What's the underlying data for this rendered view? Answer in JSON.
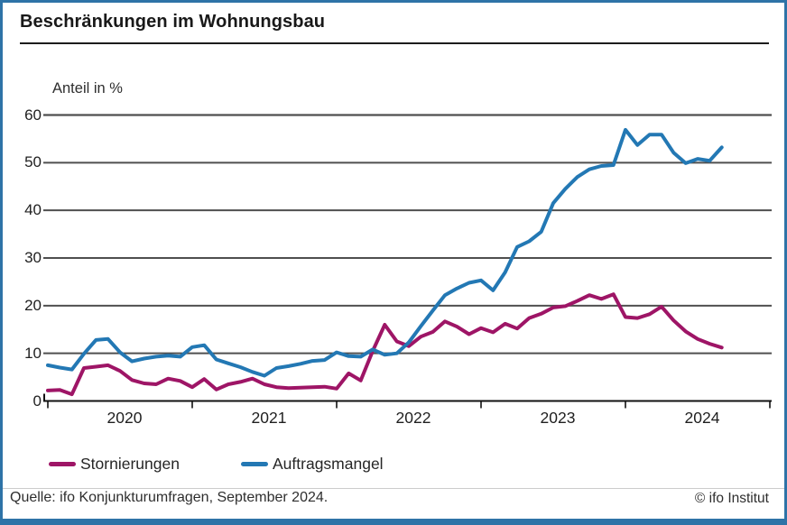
{
  "header": {
    "title": "Beschränkungen im Wohnungsbau"
  },
  "chart_data": {
    "type": "line",
    "title": "Beschränkungen im Wohnungsbau",
    "ylabel": "Anteil in %",
    "ylim": [
      0,
      60
    ],
    "y_ticks": [
      0,
      10,
      20,
      30,
      40,
      50,
      60
    ],
    "x_ticks": [
      "2020",
      "2021",
      "2022",
      "2023",
      "2024"
    ],
    "x_unit": "month",
    "x_start": "2020-01",
    "x_end": "2024-09",
    "grid": true,
    "legend_position": "bottom",
    "series": [
      {
        "name": "Stornierungen",
        "color": "#9e1566",
        "values": [
          2.2,
          2.3,
          1.4,
          6.9,
          7.2,
          7.5,
          6.3,
          4.4,
          3.7,
          3.5,
          4.7,
          4.2,
          2.9,
          4.6,
          2.4,
          3.5,
          4.0,
          4.7,
          3.5,
          2.9,
          2.7,
          2.8,
          2.9,
          3.0,
          2.6,
          5.8,
          4.3,
          10.5,
          16.0,
          12.5,
          11.5,
          13.5,
          14.5,
          16.7,
          15.6,
          14.0,
          15.3,
          14.4,
          16.2,
          15.2,
          17.4,
          18.3,
          19.6,
          19.9,
          21.0,
          22.2,
          21.4,
          22.4,
          17.6,
          17.4,
          18.2,
          19.8,
          16.9,
          14.6,
          13.0,
          12.0,
          11.2
        ]
      },
      {
        "name": "Auftragsmangel",
        "color": "#2378b4",
        "values": [
          7.5,
          7.0,
          6.6,
          9.9,
          12.8,
          13.0,
          10.2,
          8.3,
          8.9,
          9.3,
          9.5,
          9.3,
          11.3,
          11.7,
          8.7,
          7.9,
          7.1,
          6.1,
          5.3,
          6.9,
          7.3,
          7.8,
          8.4,
          8.6,
          10.2,
          9.4,
          9.3,
          10.8,
          9.7,
          10.0,
          12.3,
          15.7,
          19.0,
          22.2,
          23.6,
          24.8,
          25.3,
          23.2,
          27.0,
          32.3,
          33.5,
          35.5,
          41.5,
          44.5,
          47.0,
          48.6,
          49.3,
          49.5,
          56.9,
          53.7,
          55.9,
          55.9,
          52.1,
          49.9,
          50.8,
          50.4,
          53.2
        ]
      }
    ]
  },
  "footer": {
    "source": "Quelle: ifo Konjunkturumfragen, September 2024.",
    "copyright": "© ifo Institut"
  },
  "colors": {
    "frame_border": "#2e73a7",
    "grid": "#4f4f4f",
    "axis": "#111111",
    "stornierungen": "#9e1566",
    "auftragsmangel": "#2378b4"
  }
}
